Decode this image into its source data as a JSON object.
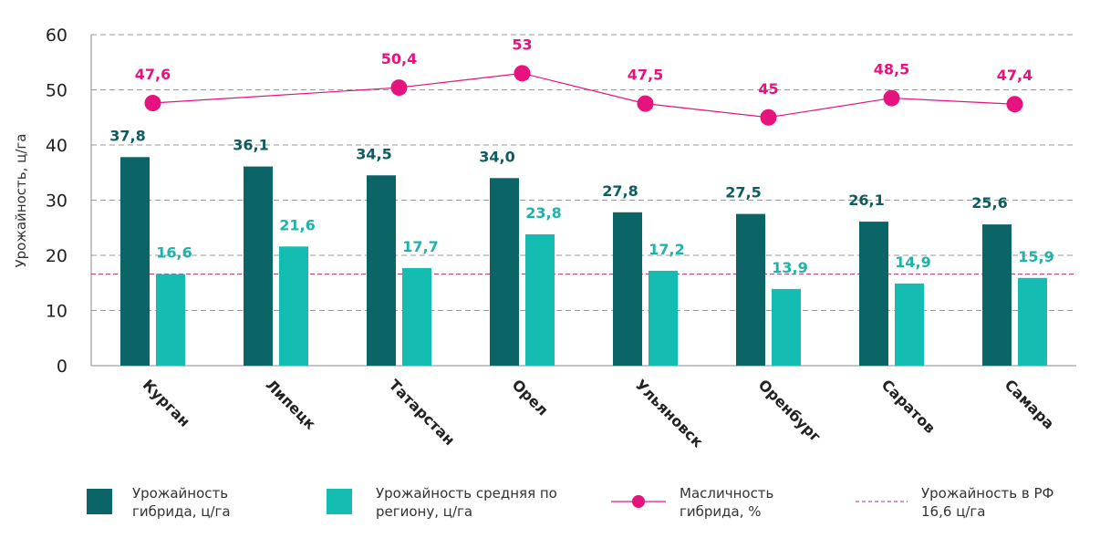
{
  "chart_data": {
    "type": "bar_line",
    "y_label": "Урожайность, ц/га",
    "categories": [
      "Курган",
      "Липецк",
      "Татарстан",
      "Орел",
      "Ульяновск",
      "Оренбург",
      "Саратов",
      "Самара"
    ],
    "series": [
      {
        "name": "Урожайность гибрида, ц/га",
        "color": "#0b6466",
        "label_color": "#0d5c5e",
        "values": [
          37.8,
          36.1,
          34.5,
          34.0,
          27.8,
          27.5,
          26.1,
          25.6
        ],
        "value_labels": [
          "37,8",
          "36,1",
          "34,5",
          "34,0",
          "27,8",
          "27,5",
          "26,1",
          "25,6"
        ]
      },
      {
        "name": "Урожайность средняя по региону, ц/га",
        "color": "#15bcb2",
        "label_color": "#1fb3a8",
        "values": [
          16.6,
          21.6,
          17.7,
          23.8,
          17.2,
          13.9,
          14.9,
          15.9
        ],
        "value_labels": [
          "16,6",
          "21,6",
          "17,7",
          "23,8",
          "17,2",
          "13,9",
          "14,9",
          "15,9"
        ]
      },
      {
        "name": "Масличность гибрида, %",
        "color": "#e6137f",
        "kind": "line",
        "connect_gaps": true,
        "values": [
          47.6,
          null,
          50.4,
          53,
          47.5,
          45,
          48.5,
          47.4
        ],
        "value_labels": [
          "47,6",
          null,
          "50,4",
          "53",
          "47,5",
          "45",
          "48,5",
          "47,4"
        ]
      }
    ],
    "reference_line": {
      "name": "Урожайность в РФ 16,6 ц/га",
      "value": 16.6,
      "color": "#a0307a"
    },
    "ylim": [
      0,
      60
    ],
    "yticks": [
      0,
      10,
      20,
      30,
      40,
      50,
      60
    ],
    "grid": true
  }
}
